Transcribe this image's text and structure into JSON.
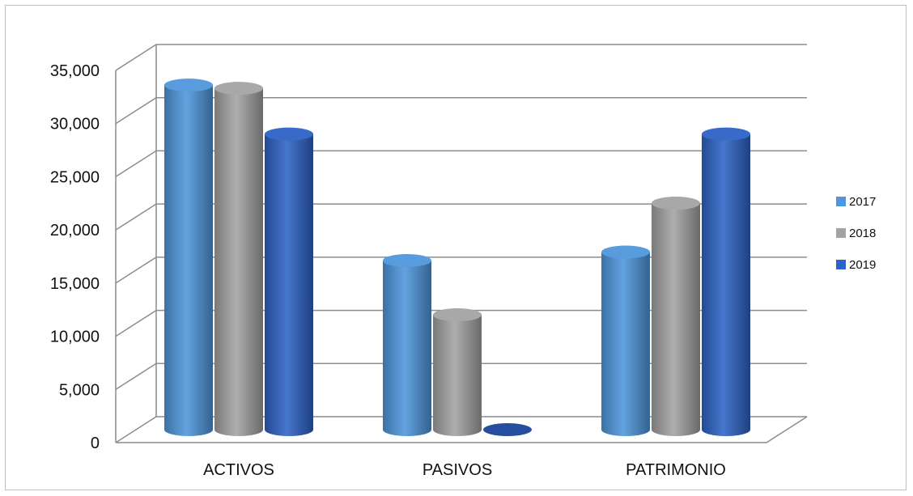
{
  "chart_data": {
    "type": "bar",
    "title": "",
    "xlabel": "",
    "ylabel": "",
    "categories": [
      "ACTIVOS",
      "PASIVOS",
      "PATRIMONIO"
    ],
    "series": [
      {
        "name": "2017",
        "values": [
          32400,
          15900,
          16700
        ],
        "color": "#4f97dc"
      },
      {
        "name": "2018",
        "values": [
          32100,
          10800,
          21300
        ],
        "color": "#a3a3a3"
      },
      {
        "name": "2019",
        "values": [
          27800,
          0,
          27800
        ],
        "color": "#2e63c6"
      }
    ],
    "ylim": [
      0,
      35000
    ],
    "yticks": [
      "0",
      "5,000",
      "10,000",
      "15,000",
      "20,000",
      "25,000",
      "30,000",
      "35,000"
    ],
    "grid": true,
    "legend_position": "right",
    "style": "3d-cylinder"
  }
}
